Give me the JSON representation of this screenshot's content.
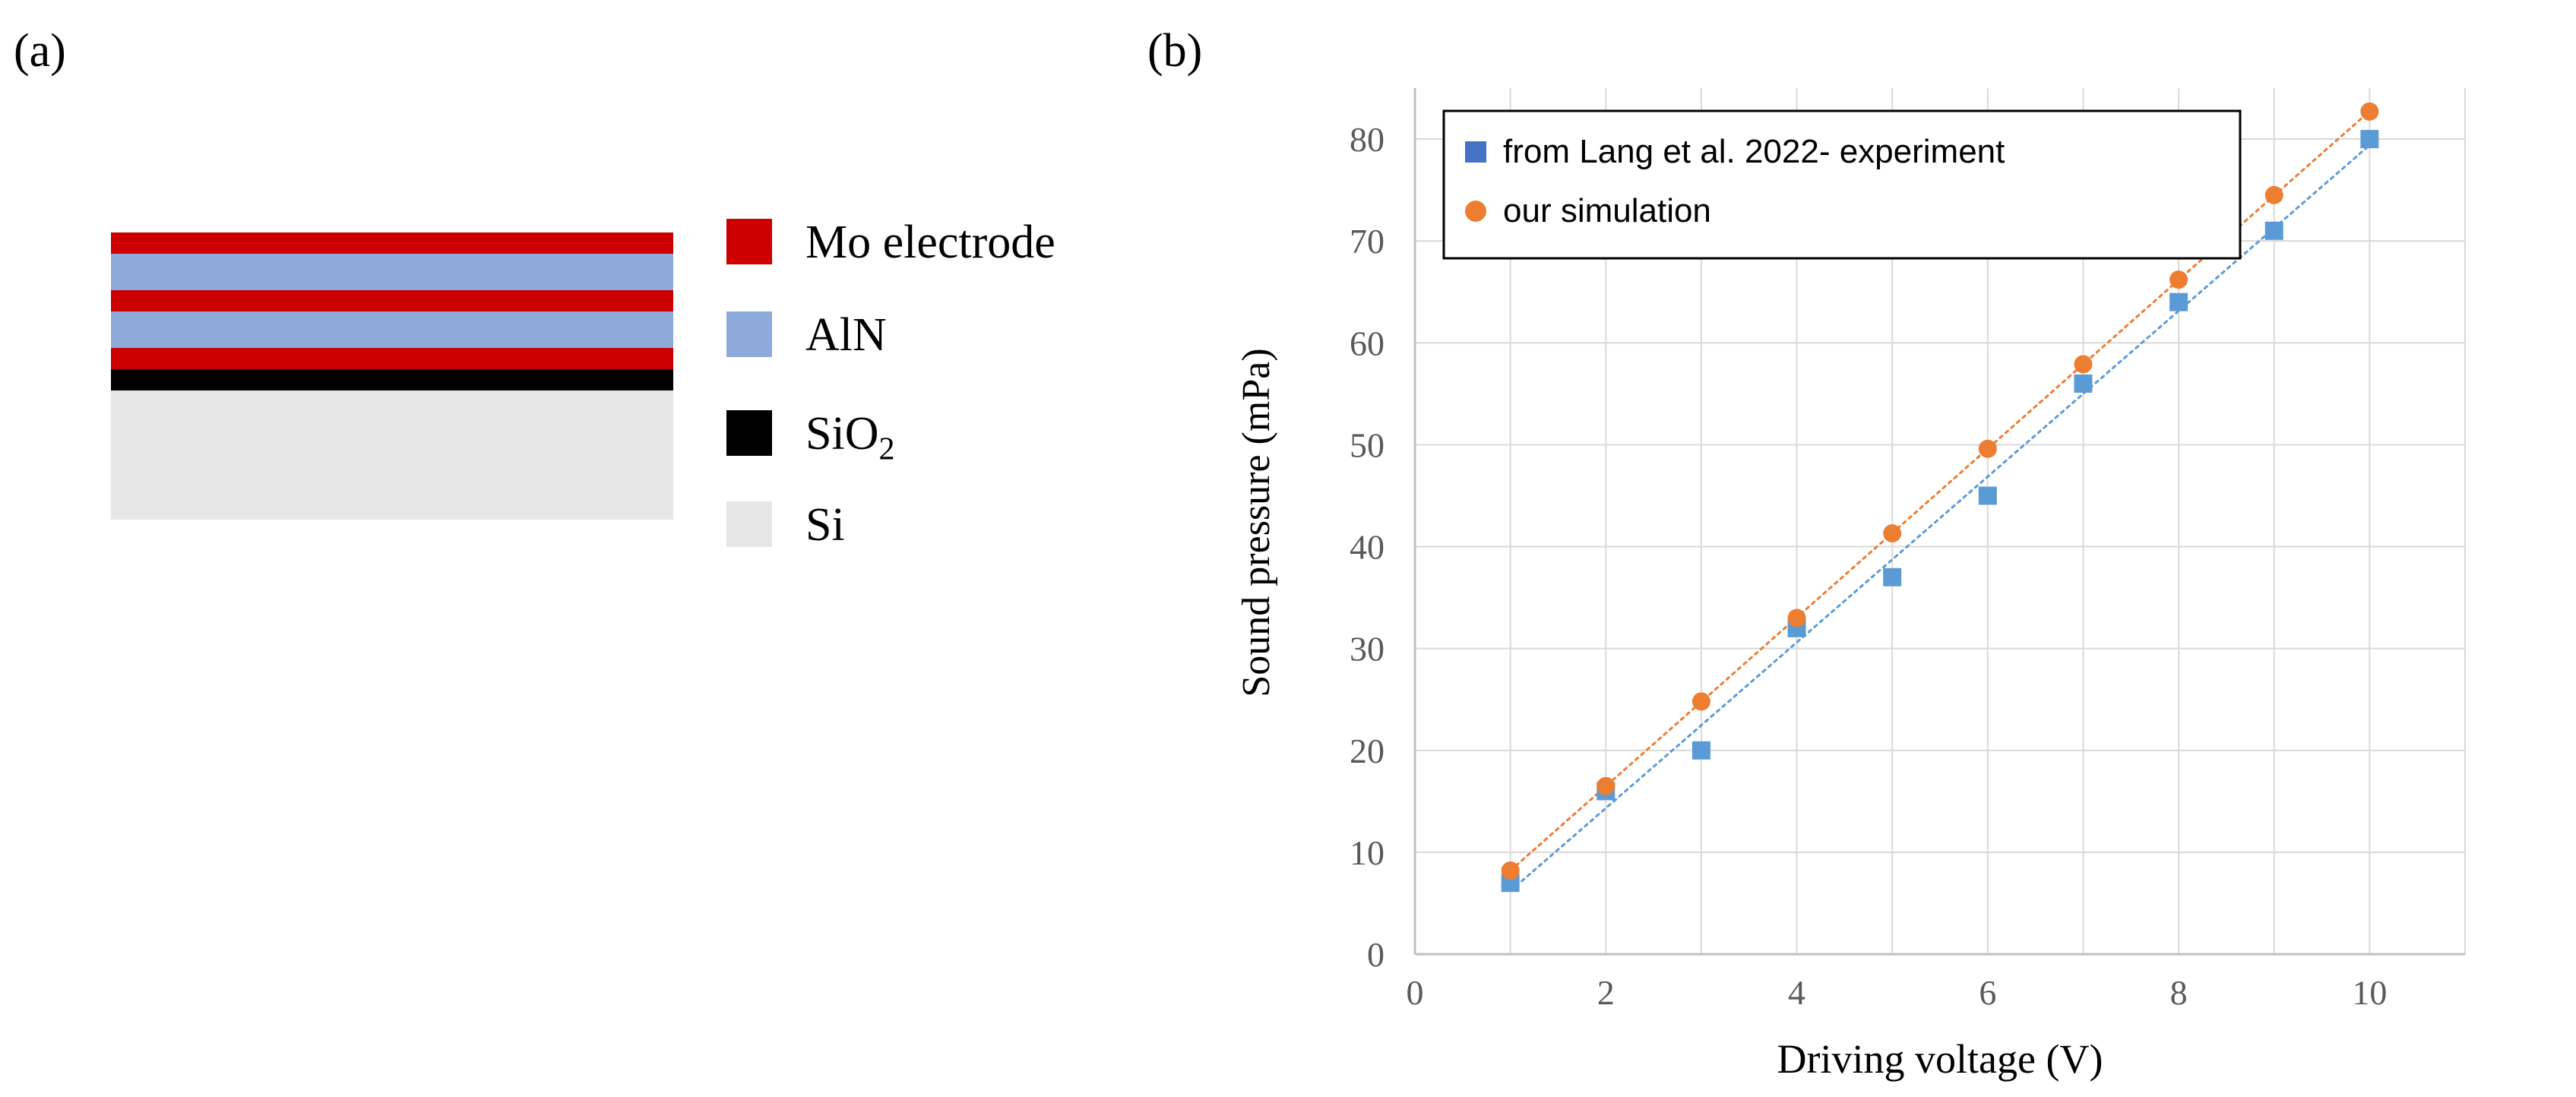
{
  "panel_a": {
    "label": "(a)",
    "legend": [
      {
        "label": "Mo electrode",
        "color": "#cc0000"
      },
      {
        "label": "AlN",
        "color": "#8eaadb"
      },
      {
        "label": "SiO",
        "sub": "2",
        "color": "#000000"
      },
      {
        "label": "Si",
        "color": "#e6e6e6"
      }
    ],
    "layers": [
      {
        "material": "Mo electrode",
        "color": "#cc0000"
      },
      {
        "material": "AlN",
        "color": "#8eaadb"
      },
      {
        "material": "Mo electrode",
        "color": "#cc0000"
      },
      {
        "material": "AlN",
        "color": "#8eaadb"
      },
      {
        "material": "Mo electrode",
        "color": "#cc0000"
      },
      {
        "material": "SiO2",
        "color": "#000000"
      },
      {
        "material": "Si",
        "color": "#e6e6e6"
      }
    ]
  },
  "panel_b": {
    "label": "(b)"
  },
  "chart_data": {
    "type": "scatter",
    "xlabel": "Driving voltage (V)",
    "ylabel": "Sound pressure (mPa)",
    "xlim": [
      0,
      11
    ],
    "ylim": [
      0,
      85
    ],
    "xticks": [
      0,
      2,
      4,
      6,
      8,
      10
    ],
    "yticks": [
      0,
      10,
      20,
      30,
      40,
      50,
      60,
      70,
      80
    ],
    "grid": true,
    "legend_position": "top-left",
    "series": [
      {
        "name": "from Lang et al. 2022- experiment",
        "marker": "square",
        "color": "#5b9bd5",
        "legend_color": "#4472c4",
        "trendline": "linear",
        "x": [
          1,
          2,
          3,
          4,
          5,
          6,
          7,
          8,
          9,
          10
        ],
        "y": [
          7,
          16,
          20,
          32,
          37,
          45,
          56,
          64,
          71,
          80
        ]
      },
      {
        "name": "our simulation",
        "marker": "circle",
        "color": "#ed7d31",
        "legend_color": "#ed7d31",
        "trendline": "linear",
        "x": [
          1,
          2,
          3,
          4,
          5,
          6,
          7,
          8,
          9,
          10
        ],
        "y": [
          8.2,
          16.5,
          24.8,
          33,
          41.3,
          49.6,
          57.9,
          66.2,
          74.5,
          82.7
        ]
      }
    ]
  }
}
